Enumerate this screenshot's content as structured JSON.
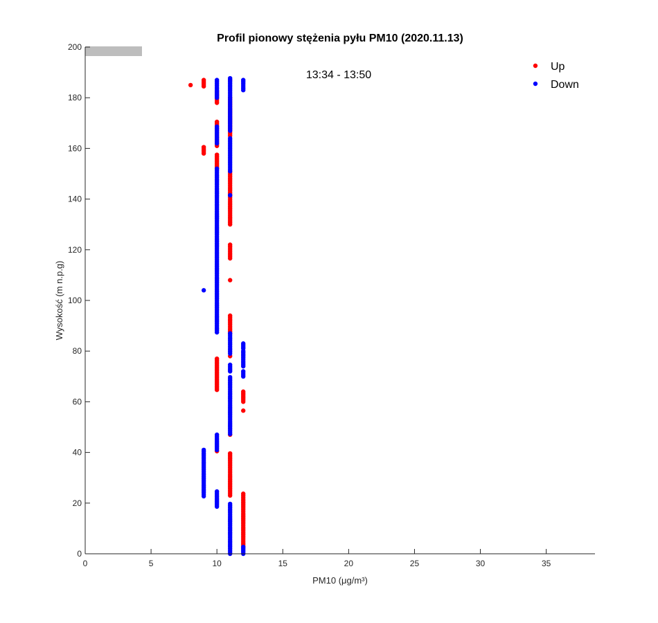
{
  "chart_data": {
    "type": "scatter",
    "title": "Profil pionowy stężenia pyłu PM10 (2020.11.13)",
    "xlabel": "PM10 (μg/m³)",
    "xlabel_parts": {
      "base": "PM10 (",
      "mu": "μ",
      "unit": "g/m",
      "exp": "3",
      "close": ")"
    },
    "ylabel": "Wysokość (m n.p.g)",
    "xlim": [
      0,
      38.7
    ],
    "ylim": [
      0,
      200
    ],
    "xticks": [
      0,
      5,
      10,
      15,
      20,
      25,
      30,
      35
    ],
    "yticks": [
      0,
      20,
      40,
      60,
      80,
      100,
      120,
      140,
      160,
      180,
      200
    ],
    "grid": false,
    "legend_position": "top-right",
    "annotation": "13:34 - 13:50",
    "point_step_m": 0.7,
    "series": [
      {
        "name": "Up",
        "color": "#ff0000",
        "runs_x_ymin_ymax": [
          [
            8,
            185,
            185
          ],
          [
            9,
            184.5,
            187
          ],
          [
            9,
            158,
            160.5
          ],
          [
            10,
            178,
            182.5
          ],
          [
            10,
            161,
            170.5
          ],
          [
            10,
            152,
            157.5
          ],
          [
            10,
            64.7,
            77
          ],
          [
            10,
            40.5,
            40.5
          ],
          [
            11,
            187,
            187
          ],
          [
            11,
            165,
            180
          ],
          [
            11,
            130,
            151
          ],
          [
            11,
            116.6,
            122
          ],
          [
            11,
            108,
            108
          ],
          [
            11,
            87,
            94
          ],
          [
            11,
            78,
            78
          ],
          [
            11,
            47,
            47
          ],
          [
            11,
            23,
            39.6
          ],
          [
            12,
            60,
            64
          ],
          [
            12,
            56.5,
            56.5
          ],
          [
            12,
            2.7,
            23.7
          ]
        ]
      },
      {
        "name": "Down",
        "color": "#0000ff",
        "runs_x_ymin_ymax": [
          [
            9,
            104,
            104
          ],
          [
            9,
            22.7,
            41
          ],
          [
            10,
            180,
            187
          ],
          [
            10,
            162,
            168.6
          ],
          [
            10,
            87.4,
            152
          ],
          [
            10,
            41,
            47
          ],
          [
            10,
            18.6,
            24.6
          ],
          [
            11,
            167,
            187.7
          ],
          [
            11,
            151,
            164
          ],
          [
            11,
            141.5,
            141.5
          ],
          [
            11,
            79,
            87
          ],
          [
            11,
            72,
            74.6
          ],
          [
            11,
            47.3,
            69.7
          ],
          [
            11,
            0,
            19.7
          ],
          [
            12,
            183,
            187
          ],
          [
            12,
            81,
            83
          ],
          [
            12,
            74,
            80
          ],
          [
            12,
            70,
            72
          ],
          [
            12,
            0,
            2.7
          ]
        ]
      }
    ]
  }
}
